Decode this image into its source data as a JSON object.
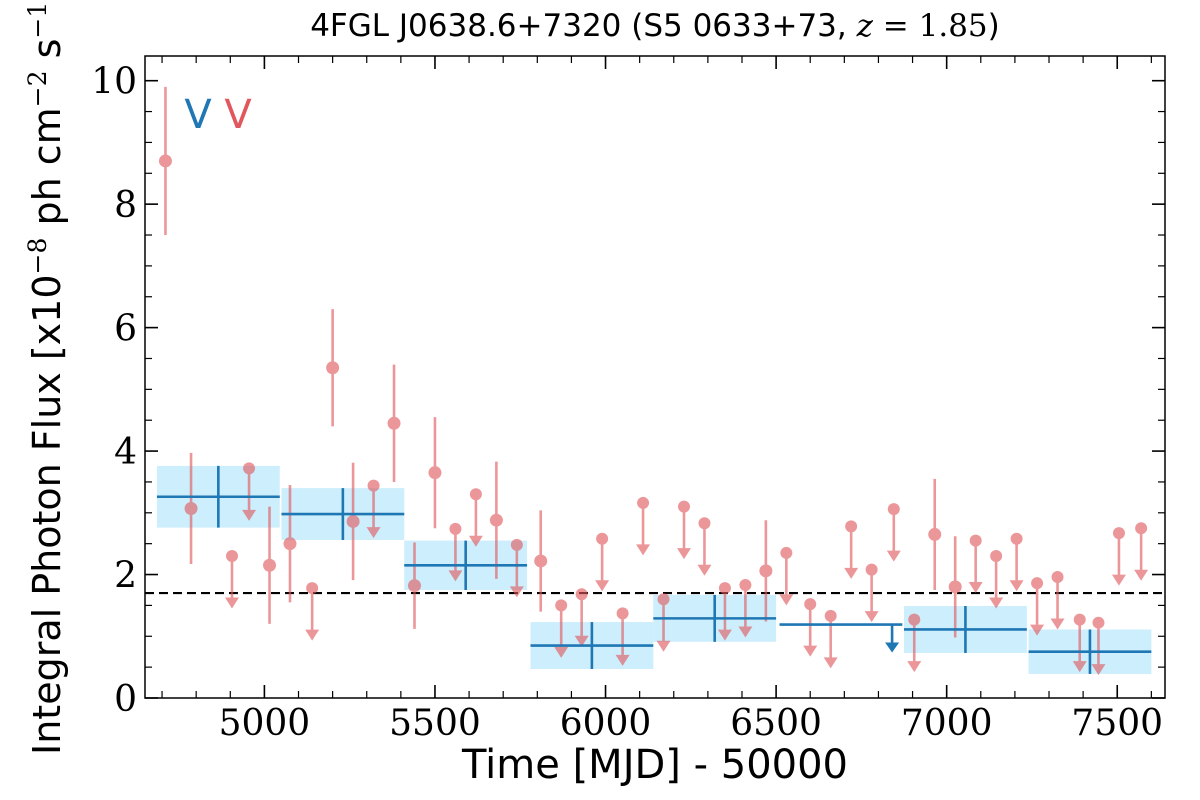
{
  "chart_data": {
    "type": "scatter",
    "title_source": "4FGL J0638.6+7320 (S5 0633+73, ",
    "title_z_var": "z",
    "title_z_value": " = 1.85",
    "title_close": ")",
    "xlabel": "Time [MJD] - 50000",
    "ylabel": {
      "prefix": "Integral Photon Flux [x10",
      "exp1": "−8",
      "middle": " ph cm",
      "exp2": "−2",
      "middle2": " s",
      "exp3": "−1",
      "suffix": "]"
    },
    "xlim": [
      4650,
      7640
    ],
    "ylim": [
      0,
      10.4
    ],
    "xticks": [
      "5000",
      "5500",
      "6000",
      "6500",
      "7000",
      "7500"
    ],
    "xtick_values": [
      5000,
      5500,
      6000,
      6500,
      7000,
      7500
    ],
    "yticks": [
      "0",
      "2",
      "4",
      "6",
      "8",
      "10"
    ],
    "ytick_values": [
      0,
      2,
      4,
      6,
      8,
      10
    ],
    "reference_line": 1.7,
    "legend_markers": [
      "V",
      "V"
    ],
    "colors": {
      "fine": "#e0585d",
      "fine_bar": "#eba2a4",
      "coarse": "#1f77b4",
      "coarse_band": "#cdeefc",
      "reference": "#000000"
    },
    "series": [
      {
        "bin_days": 60,
        "points": [
          {
            "x": 4710,
            "y": 8.7,
            "yerr": 1.2
          },
          {
            "x": 4785,
            "y": 3.07,
            "yerr": 0.9
          },
          {
            "x": 4905,
            "y": 2.3,
            "ul": true
          },
          {
            "x": 4955,
            "y": 3.72,
            "ul": true
          },
          {
            "x": 5015,
            "y": 2.15,
            "yerr": 0.95
          },
          {
            "x": 5075,
            "y": 2.5,
            "yerr": 0.95
          },
          {
            "x": 5140,
            "y": 1.78,
            "ul": true
          },
          {
            "x": 5200,
            "y": 5.35,
            "yerr": 0.95
          },
          {
            "x": 5260,
            "y": 2.86,
            "yerr": 0.95
          },
          {
            "x": 5320,
            "y": 3.44,
            "ul": true
          },
          {
            "x": 5380,
            "y": 4.45,
            "yerr": 0.95
          },
          {
            "x": 5440,
            "y": 1.82,
            "yerr": 0.7
          },
          {
            "x": 5500,
            "y": 3.65,
            "yerr": 0.9
          },
          {
            "x": 5560,
            "y": 2.74,
            "ul": true
          },
          {
            "x": 5620,
            "y": 3.3,
            "ul": true
          },
          {
            "x": 5680,
            "y": 2.88,
            "yerr": 0.95
          },
          {
            "x": 5740,
            "y": 2.48,
            "ul": true
          },
          {
            "x": 5810,
            "y": 2.22,
            "yerr": 0.82
          },
          {
            "x": 5870,
            "y": 1.5,
            "ul": true
          },
          {
            "x": 5930,
            "y": 1.68,
            "ul": true
          },
          {
            "x": 5990,
            "y": 2.58,
            "ul": true
          },
          {
            "x": 6050,
            "y": 1.37,
            "ul": true
          },
          {
            "x": 6110,
            "y": 3.16,
            "ul": true
          },
          {
            "x": 6170,
            "y": 1.6,
            "ul": true
          },
          {
            "x": 6230,
            "y": 3.1,
            "ul": true
          },
          {
            "x": 6290,
            "y": 2.83,
            "ul": true
          },
          {
            "x": 6350,
            "y": 1.78,
            "ul": true
          },
          {
            "x": 6410,
            "y": 1.83,
            "ul": true
          },
          {
            "x": 6470,
            "y": 2.06,
            "yerr": 0.82
          },
          {
            "x": 6530,
            "y": 2.35,
            "ul": true
          },
          {
            "x": 6600,
            "y": 1.52,
            "ul": true
          },
          {
            "x": 6660,
            "y": 1.33,
            "ul": true
          },
          {
            "x": 6720,
            "y": 2.78,
            "ul": true
          },
          {
            "x": 6780,
            "y": 2.08,
            "ul": true
          },
          {
            "x": 6845,
            "y": 3.06,
            "ul": true
          },
          {
            "x": 6905,
            "y": 1.27,
            "ul": true
          },
          {
            "x": 6965,
            "y": 2.65,
            "yerr": 0.9
          },
          {
            "x": 7025,
            "y": 1.8,
            "yerr": 0.82
          },
          {
            "x": 7085,
            "y": 2.55,
            "ul": true
          },
          {
            "x": 7145,
            "y": 2.3,
            "ul": true
          },
          {
            "x": 7205,
            "y": 2.58,
            "ul": true
          },
          {
            "x": 7265,
            "y": 1.86,
            "ul": true
          },
          {
            "x": 7325,
            "y": 1.96,
            "ul": true
          },
          {
            "x": 7390,
            "y": 1.27,
            "ul": true
          },
          {
            "x": 7445,
            "y": 1.22,
            "ul": true
          },
          {
            "x": 7505,
            "y": 2.67,
            "ul": true
          },
          {
            "x": 7570,
            "y": 2.75,
            "ul": true
          }
        ]
      },
      {
        "bin_days": 365,
        "bins": [
          {
            "x": 4865,
            "xerr": 180,
            "y": 3.26,
            "yerr": 0.5
          },
          {
            "x": 5230,
            "xerr": 180,
            "y": 2.98,
            "yerr": 0.42
          },
          {
            "x": 5590,
            "xerr": 180,
            "y": 2.15,
            "yerr": 0.4
          },
          {
            "x": 5960,
            "xerr": 180,
            "y": 0.85,
            "yerr": 0.38
          },
          {
            "x": 6320,
            "xerr": 180,
            "y": 1.29,
            "yerr": 0.38
          },
          {
            "x": 6690,
            "xerr": 180,
            "y": 1.19,
            "ul": true
          },
          {
            "x": 7055,
            "xerr": 180,
            "y": 1.11,
            "yerr": 0.38
          },
          {
            "x": 7420,
            "xerr": 180,
            "y": 0.75,
            "yerr": 0.36
          }
        ]
      }
    ]
  }
}
